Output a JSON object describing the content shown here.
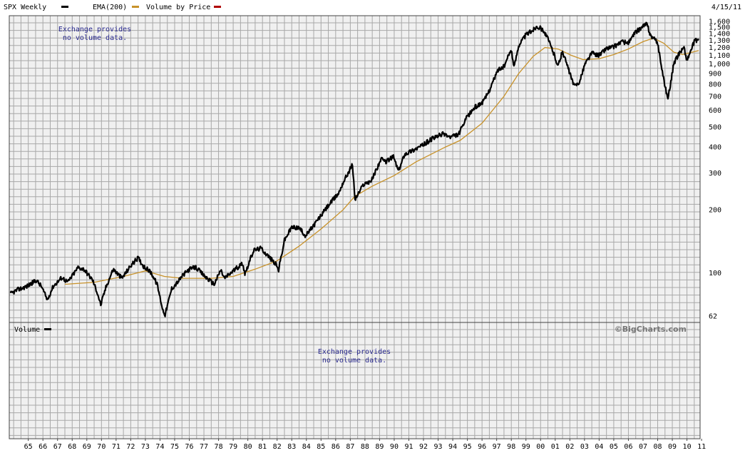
{
  "header": {
    "date": "4/15/11"
  },
  "legend": {
    "price": {
      "label": "SPX Weekly",
      "color": "#000000"
    },
    "ema": {
      "label": "EMA(200)",
      "color": "#c8922a"
    },
    "vbp": {
      "label": "Volume by Price",
      "color": "#b00000"
    }
  },
  "volume_panel": {
    "label": "Volume",
    "note_line1": "Exchange provides",
    "note_line2": "no volume data."
  },
  "price_note": {
    "line1": "Exchange provides",
    "line2": "no volume data."
  },
  "copyright": "©BigCharts.com",
  "chart_data": {
    "type": "line",
    "y_scale": "log",
    "ylim": [
      62,
      1600
    ],
    "y_ticks": [
      {
        "value": 1600,
        "label": "1,600"
      },
      {
        "value": 1500,
        "label": "1,500"
      },
      {
        "value": 1400,
        "label": "1,400"
      },
      {
        "value": 1300,
        "label": "1,300"
      },
      {
        "value": 1200,
        "label": "1,200"
      },
      {
        "value": 1100,
        "label": "1,100"
      },
      {
        "value": 1000,
        "label": "1,000"
      },
      {
        "value": 900,
        "label": "900"
      },
      {
        "value": 800,
        "label": "800"
      },
      {
        "value": 700,
        "label": "700"
      },
      {
        "value": 600,
        "label": "600"
      },
      {
        "value": 500,
        "label": "500"
      },
      {
        "value": 400,
        "label": "400"
      },
      {
        "value": 300,
        "label": "300"
      },
      {
        "value": 200,
        "label": "200"
      },
      {
        "value": 100,
        "label": "100"
      },
      {
        "value": 62,
        "label": "62"
      }
    ],
    "x_range": [
      1964.25,
      2011.3
    ],
    "x_ticks": [
      {
        "value": 1965,
        "label": "65"
      },
      {
        "value": 1966,
        "label": "66"
      },
      {
        "value": 1967,
        "label": "67"
      },
      {
        "value": 1968,
        "label": "68"
      },
      {
        "value": 1969,
        "label": "69"
      },
      {
        "value": 1970,
        "label": "70"
      },
      {
        "value": 1971,
        "label": "71"
      },
      {
        "value": 1972,
        "label": "72"
      },
      {
        "value": 1973,
        "label": "73"
      },
      {
        "value": 1974,
        "label": "74"
      },
      {
        "value": 1975,
        "label": "75"
      },
      {
        "value": 1976,
        "label": "76"
      },
      {
        "value": 1977,
        "label": "77"
      },
      {
        "value": 1978,
        "label": "78"
      },
      {
        "value": 1979,
        "label": "79"
      },
      {
        "value": 1980,
        "label": "80"
      },
      {
        "value": 1981,
        "label": "81"
      },
      {
        "value": 1982,
        "label": "82"
      },
      {
        "value": 1983,
        "label": "83"
      },
      {
        "value": 1984,
        "label": "84"
      },
      {
        "value": 1985,
        "label": "85"
      },
      {
        "value": 1986,
        "label": "86"
      },
      {
        "value": 1987,
        "label": "87"
      },
      {
        "value": 1988,
        "label": "88"
      },
      {
        "value": 1989,
        "label": "89"
      },
      {
        "value": 1990,
        "label": "90"
      },
      {
        "value": 1991,
        "label": "91"
      },
      {
        "value": 1992,
        "label": "92"
      },
      {
        "value": 1993,
        "label": "93"
      },
      {
        "value": 1994,
        "label": "94"
      },
      {
        "value": 1995,
        "label": "95"
      },
      {
        "value": 1996,
        "label": "96"
      },
      {
        "value": 1997,
        "label": "97"
      },
      {
        "value": 1998,
        "label": "98"
      },
      {
        "value": 1999,
        "label": "99"
      },
      {
        "value": 2000,
        "label": "00"
      },
      {
        "value": 2001,
        "label": "01"
      },
      {
        "value": 2002,
        "label": "02"
      },
      {
        "value": 2003,
        "label": "03"
      },
      {
        "value": 2004,
        "label": "04"
      },
      {
        "value": 2005,
        "label": "05"
      },
      {
        "value": 2006,
        "label": "06"
      },
      {
        "value": 2007,
        "label": "07"
      },
      {
        "value": 2008,
        "label": "08"
      },
      {
        "value": 2009,
        "label": "09"
      },
      {
        "value": 2010,
        "label": "10"
      },
      {
        "value": 2011,
        "label": "11"
      }
    ],
    "series": [
      {
        "name": "SPX Weekly",
        "color": "#000000",
        "points": [
          [
            1964.25,
            79
          ],
          [
            1964.8,
            83
          ],
          [
            1965.4,
            86
          ],
          [
            1966.05,
            92
          ],
          [
            1966.4,
            86
          ],
          [
            1966.8,
            74
          ],
          [
            1967.2,
            86
          ],
          [
            1967.8,
            95
          ],
          [
            1968.2,
            90
          ],
          [
            1968.9,
            106
          ],
          [
            1969.3,
            104
          ],
          [
            1969.9,
            92
          ],
          [
            1970.25,
            79
          ],
          [
            1970.45,
            70
          ],
          [
            1970.8,
            85
          ],
          [
            1971.3,
            104
          ],
          [
            1971.9,
            94
          ],
          [
            1972.5,
            108
          ],
          [
            1973.0,
            118
          ],
          [
            1973.35,
            108
          ],
          [
            1973.9,
            100
          ],
          [
            1974.3,
            88
          ],
          [
            1974.7,
            66
          ],
          [
            1974.85,
            63
          ],
          [
            1975.3,
            84
          ],
          [
            1975.7,
            90
          ],
          [
            1976.0,
            96
          ],
          [
            1976.5,
            104
          ],
          [
            1976.95,
            106
          ],
          [
            1977.5,
            97
          ],
          [
            1978.2,
            88
          ],
          [
            1978.65,
            103
          ],
          [
            1978.9,
            94
          ],
          [
            1979.5,
            102
          ],
          [
            1980.15,
            111
          ],
          [
            1980.3,
            99
          ],
          [
            1980.9,
            128
          ],
          [
            1981.4,
            131
          ],
          [
            1981.9,
            120
          ],
          [
            1982.4,
            110
          ],
          [
            1982.6,
            103
          ],
          [
            1983.0,
            143
          ],
          [
            1983.5,
            165
          ],
          [
            1984.0,
            164
          ],
          [
            1984.45,
            150
          ],
          [
            1984.9,
            165
          ],
          [
            1985.5,
            188
          ],
          [
            1986.0,
            210
          ],
          [
            1986.7,
            240
          ],
          [
            1987.0,
            270
          ],
          [
            1987.65,
            330
          ],
          [
            1987.82,
            224
          ],
          [
            1988.4,
            265
          ],
          [
            1988.95,
            277
          ],
          [
            1989.6,
            350
          ],
          [
            1989.9,
            340
          ],
          [
            1990.45,
            360
          ],
          [
            1990.8,
            306
          ],
          [
            1991.2,
            370
          ],
          [
            1991.9,
            390
          ],
          [
            1992.5,
            410
          ],
          [
            1993.0,
            435
          ],
          [
            1993.9,
            465
          ],
          [
            1994.3,
            445
          ],
          [
            1994.9,
            460
          ],
          [
            1995.5,
            560
          ],
          [
            1996.0,
            620
          ],
          [
            1996.6,
            660
          ],
          [
            1997.0,
            750
          ],
          [
            1997.6,
            940
          ],
          [
            1998.0,
            970
          ],
          [
            1998.5,
            1180
          ],
          [
            1998.68,
            960
          ],
          [
            1999.0,
            1230
          ],
          [
            1999.5,
            1380
          ],
          [
            2000.0,
            1460
          ],
          [
            2000.25,
            1520
          ],
          [
            2000.7,
            1450
          ],
          [
            2001.0,
            1320
          ],
          [
            2001.35,
            1150
          ],
          [
            2001.7,
            980
          ],
          [
            2002.0,
            1150
          ],
          [
            2002.5,
            900
          ],
          [
            2002.8,
            780
          ],
          [
            2003.2,
            830
          ],
          [
            2003.5,
            990
          ],
          [
            2004.0,
            1130
          ],
          [
            2004.5,
            1100
          ],
          [
            2005.0,
            1190
          ],
          [
            2005.5,
            1210
          ],
          [
            2006.0,
            1280
          ],
          [
            2006.5,
            1260
          ],
          [
            2007.0,
            1420
          ],
          [
            2007.75,
            1560
          ],
          [
            2008.0,
            1380
          ],
          [
            2008.5,
            1260
          ],
          [
            2008.9,
            850
          ],
          [
            2009.2,
            680
          ],
          [
            2009.6,
            1000
          ],
          [
            2010.0,
            1140
          ],
          [
            2010.3,
            1200
          ],
          [
            2010.5,
            1040
          ],
          [
            2011.0,
            1280
          ],
          [
            2011.3,
            1320
          ]
        ]
      },
      {
        "name": "EMA(200)",
        "color": "#c8922a",
        "points": [
          [
            1968.0,
            88
          ],
          [
            1970.0,
            90
          ],
          [
            1972.0,
            96
          ],
          [
            1973.5,
            102
          ],
          [
            1974.8,
            96
          ],
          [
            1976.0,
            94
          ],
          [
            1978.0,
            94
          ],
          [
            1979.5,
            96
          ],
          [
            1981.0,
            104
          ],
          [
            1982.5,
            114
          ],
          [
            1984.0,
            134
          ],
          [
            1985.5,
            162
          ],
          [
            1987.0,
            200
          ],
          [
            1987.8,
            232
          ],
          [
            1989.0,
            260
          ],
          [
            1990.5,
            292
          ],
          [
            1992.0,
            340
          ],
          [
            1994.0,
            400
          ],
          [
            1995.0,
            430
          ],
          [
            1996.5,
            520
          ],
          [
            1998.0,
            700
          ],
          [
            1999.0,
            900
          ],
          [
            2000.0,
            1090
          ],
          [
            2000.8,
            1200
          ],
          [
            2001.7,
            1180
          ],
          [
            2002.6,
            1100
          ],
          [
            2003.4,
            1050
          ],
          [
            2004.5,
            1060
          ],
          [
            2005.5,
            1110
          ],
          [
            2006.5,
            1180
          ],
          [
            2007.5,
            1280
          ],
          [
            2008.2,
            1330
          ],
          [
            2008.9,
            1260
          ],
          [
            2009.6,
            1140
          ],
          [
            2010.2,
            1110
          ],
          [
            2011.3,
            1160
          ]
        ]
      }
    ]
  }
}
